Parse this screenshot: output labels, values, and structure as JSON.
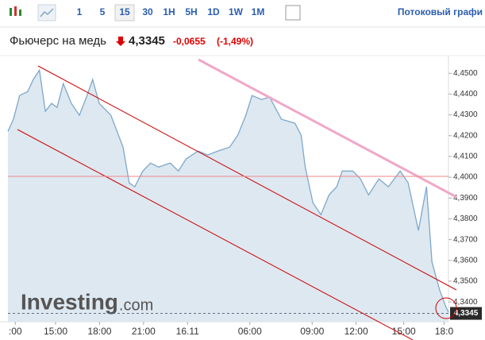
{
  "toolbar": {
    "intervals": [
      "1",
      "5",
      "15",
      "30",
      "1H",
      "5H",
      "1D",
      "1W",
      "1M"
    ],
    "streaming": "Потоковый графи"
  },
  "header": {
    "title": "Фьючерс на медь",
    "price": "4,3345",
    "change": "-0,0655",
    "change_pct": "(-1,49%)"
  },
  "chart_data": {
    "type": "line",
    "watermark": "Investing",
    "watermark_suffix": ".com",
    "x": [
      0,
      1.5,
      3.2,
      5.4,
      6.9,
      8.6,
      10.2,
      11.9,
      13.4,
      15.1,
      17.3,
      19.5,
      21.6,
      23.1,
      24.9,
      28.1,
      31.4,
      33.1,
      34.6,
      36.8,
      38.9,
      41.1,
      44.3,
      46.5,
      48.6,
      51.9,
      54.5,
      57.3,
      60.5,
      62.7,
      64.9,
      66.6,
      69.2,
      71.4,
      74.6,
      78.3,
      80,
      81.1,
      83.2,
      85.4,
      87.6,
      89.7,
      91.2,
      94.1,
      96.2,
      98.4,
      101.2,
      103.8,
      107,
      109.2,
      112,
      114.2,
      115.7,
      117.8,
      119.4,
      120.2
    ],
    "series": [
      {
        "name": "Фьючерс на медь",
        "color": "#7fa7c8",
        "values": [
          4.4221,
          4.4279,
          4.4393,
          4.4412,
          4.447,
          4.4515,
          4.4317,
          4.4355,
          4.4336,
          4.445,
          4.4355,
          4.4298,
          4.4393,
          4.447,
          4.4355,
          4.4298,
          4.4145,
          4.3973,
          4.3954,
          4.403,
          4.4068,
          4.4049,
          4.4068,
          4.403,
          4.4088,
          4.4126,
          4.4107,
          4.4126,
          4.4145,
          4.4202,
          4.4298,
          4.4393,
          4.4374,
          4.4385,
          4.4279,
          4.426,
          4.4202,
          4.4049,
          4.3877,
          4.382,
          4.3915,
          4.3954,
          4.403,
          4.403,
          4.3992,
          4.3915,
          4.3992,
          4.3954,
          4.403,
          4.3973,
          4.3744,
          4.3954,
          4.3591,
          4.3457,
          4.3381,
          4.335
        ]
      }
    ],
    "last_value": 4.3345,
    "last_value_label": "4,3345",
    "xlim": [
      0,
      120.2
    ],
    "xticks": [
      {
        "value": 2,
        "label": ":00"
      },
      {
        "value": 13,
        "label": "15:00"
      },
      {
        "value": 25,
        "label": "18:00"
      },
      {
        "value": 37,
        "label": "21:00"
      },
      {
        "value": 49,
        "label": "16.11"
      },
      {
        "value": 66,
        "label": "06:00"
      },
      {
        "value": 83,
        "label": "09:00"
      },
      {
        "value": 95,
        "label": "12:00"
      },
      {
        "value": 108,
        "label": "15:00"
      },
      {
        "value": 119,
        "label": "18:0"
      }
    ],
    "ylim": [
      4.3305,
      4.4585
    ],
    "yticks": [
      {
        "value": 4.34,
        "label": "4,3400"
      },
      {
        "value": 4.35,
        "label": "4,3500"
      },
      {
        "value": 4.36,
        "label": "4,3600"
      },
      {
        "value": 4.37,
        "label": "4,3700"
      },
      {
        "value": 4.38,
        "label": "4,3800"
      },
      {
        "value": 4.39,
        "label": "4,3900"
      },
      {
        "value": 4.4,
        "label": "4,4000"
      },
      {
        "value": 4.41,
        "label": "4,4100"
      },
      {
        "value": 4.42,
        "label": "4,4200"
      },
      {
        "value": 4.43,
        "label": "4,4300"
      },
      {
        "value": 4.44,
        "label": "4,4400"
      },
      {
        "value": 4.45,
        "label": "4,4500"
      }
    ]
  }
}
